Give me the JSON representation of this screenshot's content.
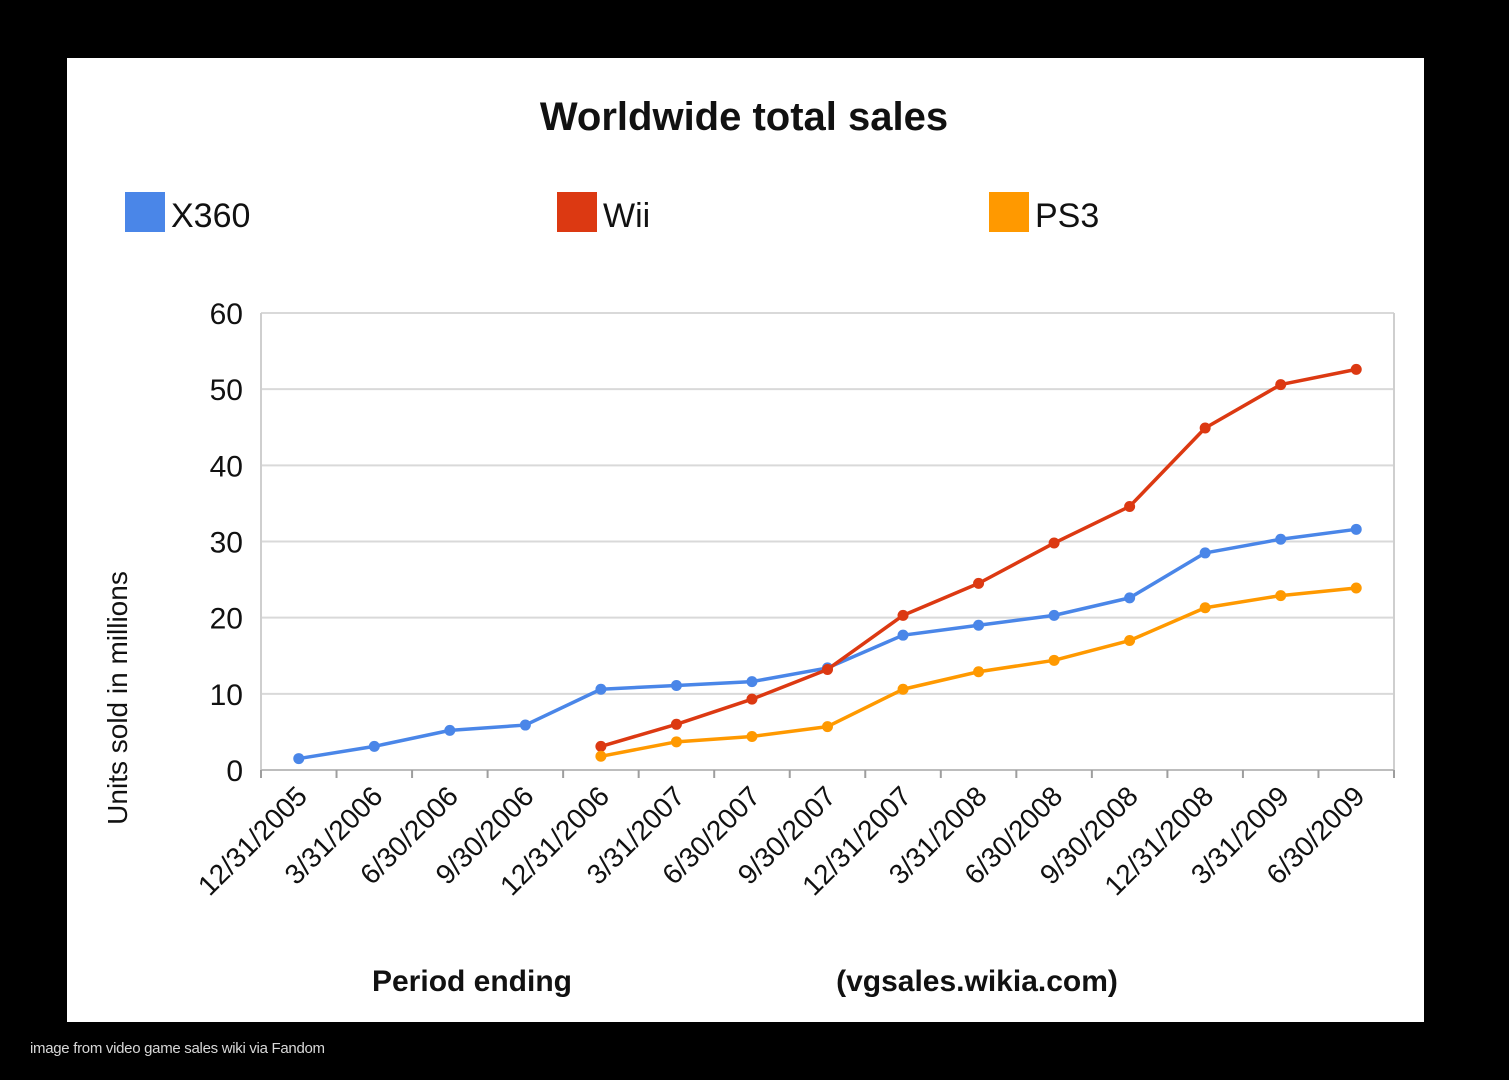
{
  "chart_data": {
    "type": "line",
    "title": "Worldwide total sales",
    "xlabel": "Period ending",
    "ylabel": "Units sold in millions",
    "source_note": "(vgsales.wikia.com)",
    "ylim": [
      0,
      60
    ],
    "yticks": [
      0,
      10,
      20,
      30,
      40,
      50,
      60
    ],
    "grid": true,
    "legend_position": "top",
    "categories": [
      "12/31/2005",
      "3/31/2006",
      "6/30/2006",
      "9/30/2006",
      "12/31/2006",
      "3/31/2007",
      "6/30/2007",
      "9/30/2007",
      "12/31/2007",
      "3/31/2008",
      "6/30/2008",
      "9/30/2008",
      "12/31/2008",
      "3/31/2009",
      "6/30/2009"
    ],
    "series": [
      {
        "name": "X360",
        "color": "#4a86e8",
        "values": [
          1.5,
          3.1,
          5.2,
          5.9,
          10.6,
          11.1,
          11.6,
          13.4,
          17.7,
          19.0,
          20.3,
          22.6,
          28.5,
          30.3,
          31.6
        ]
      },
      {
        "name": "Wii",
        "color": "#dc3912",
        "values": [
          null,
          null,
          null,
          null,
          3.1,
          6.0,
          9.3,
          13.2,
          20.3,
          24.5,
          29.8,
          34.6,
          44.9,
          50.6,
          52.6
        ]
      },
      {
        "name": "PS3",
        "color": "#ff9900",
        "values": [
          null,
          null,
          null,
          null,
          1.8,
          3.7,
          4.4,
          5.7,
          10.6,
          12.9,
          14.4,
          17.0,
          21.3,
          22.9,
          23.9
        ]
      }
    ]
  },
  "caption": "image from video game sales wiki via Fandom"
}
